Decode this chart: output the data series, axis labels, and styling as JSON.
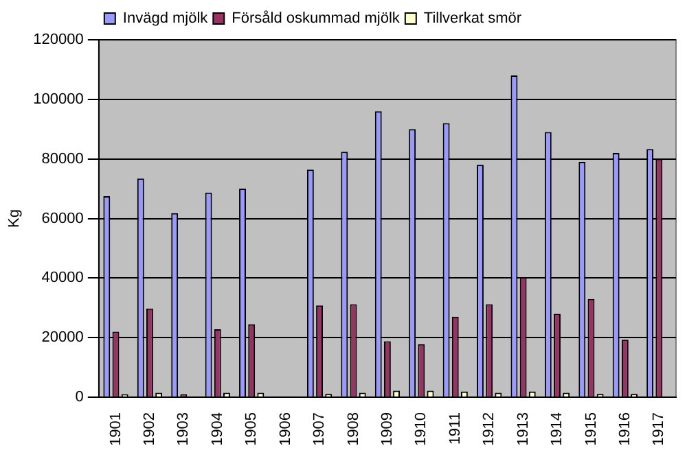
{
  "chart_data": {
    "type": "bar",
    "ylabel": "Kg",
    "categories": [
      "1901",
      "1902",
      "1903",
      "1904",
      "1905",
      "1906",
      "1907",
      "1908",
      "1909",
      "1910",
      "1911",
      "1912",
      "1913",
      "1914",
      "1915",
      "1916",
      "1917"
    ],
    "series": [
      {
        "name": "Invägd mjölk",
        "color": "#9999ff",
        "values": [
          67500,
          73400,
          61800,
          68700,
          70000,
          null,
          76400,
          82400,
          96000,
          90000,
          92000,
          78000,
          108000,
          89000,
          79000,
          82000,
          83300
        ]
      },
      {
        "name": "Försåld oskummad mjölk",
        "color": "#993366",
        "values": [
          22000,
          29800,
          1000,
          22800,
          24500,
          null,
          30800,
          31200,
          18800,
          17800,
          27000,
          31200,
          40300,
          28000,
          33000,
          19300,
          80000
        ]
      },
      {
        "name": "Tillverkat smör",
        "color": "#ffffcc",
        "values": [
          1000,
          1500,
          null,
          1500,
          1500,
          null,
          1100,
          1500,
          2200,
          2200,
          1900,
          1500,
          1900,
          1500,
          1100,
          1100,
          null
        ]
      }
    ],
    "ylim": [
      0,
      120000
    ],
    "yticks": [
      0,
      20000,
      40000,
      60000,
      80000,
      100000,
      120000
    ],
    "grid": "y",
    "legend": "top left"
  }
}
